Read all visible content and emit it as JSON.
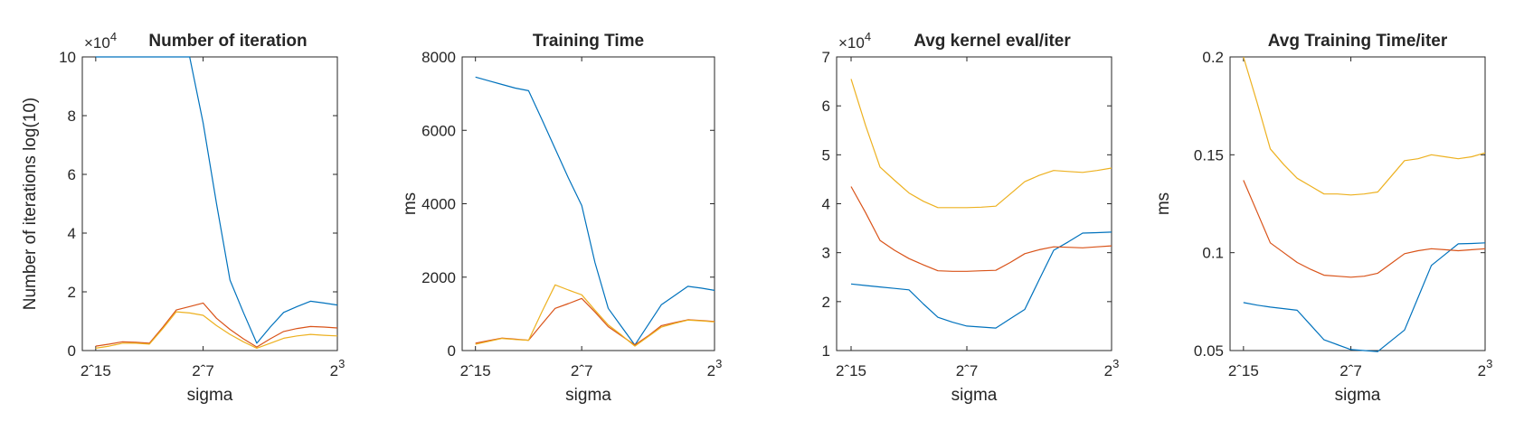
{
  "colors": {
    "series1": "#0072BD",
    "series2": "#D95319",
    "series3": "#EDB120",
    "axis": "#262626"
  },
  "chart_data": [
    {
      "type": "line",
      "title": "Number of iteration",
      "xlabel": "sigma",
      "ylabel": "Number of iterations log(10)",
      "exponent_label": "×10",
      "exponent_power": "4",
      "xlim": [
        -16,
        3
      ],
      "ylim": [
        0,
        10
      ],
      "xticks": [
        {
          "v": -15,
          "label": "2ˆ15"
        },
        {
          "v": -7,
          "label": "2ˆ7"
        },
        {
          "v": 3,
          "label": "2"
        }
      ],
      "xtick_power": "3",
      "yticks": [
        {
          "v": 0,
          "label": "0"
        },
        {
          "v": 2,
          "label": "2"
        },
        {
          "v": 4,
          "label": "4"
        },
        {
          "v": 6,
          "label": "6"
        },
        {
          "v": 8,
          "label": "8"
        },
        {
          "v": 10,
          "label": "10"
        }
      ],
      "x": [
        -15,
        -14,
        -13,
        -12,
        -11,
        -10,
        -9,
        -8,
        -7,
        -6,
        -5,
        -4,
        -3,
        -2,
        -1,
        0,
        1,
        2,
        3
      ],
      "series": [
        {
          "color": "series1",
          "values": [
            10,
            10,
            10,
            10,
            10,
            10,
            10,
            10,
            7.75,
            5.0,
            2.4,
            1.3,
            0.25,
            0.8,
            1.3,
            1.5,
            1.68,
            1.62,
            1.55
          ]
        },
        {
          "color": "series2",
          "values": [
            0.15,
            0.22,
            0.3,
            0.28,
            0.25,
            0.8,
            1.38,
            1.5,
            1.62,
            1.1,
            0.72,
            0.4,
            0.12,
            0.4,
            0.65,
            0.75,
            0.82,
            0.8,
            0.77
          ]
        },
        {
          "color": "series3",
          "values": [
            0.08,
            0.15,
            0.25,
            0.25,
            0.22,
            0.75,
            1.32,
            1.28,
            1.2,
            0.85,
            0.55,
            0.3,
            0.08,
            0.25,
            0.42,
            0.5,
            0.55,
            0.52,
            0.5
          ]
        }
      ]
    },
    {
      "type": "line",
      "title": "Training Time",
      "xlabel": "sigma",
      "ylabel": "ms",
      "exponent_label": "",
      "exponent_power": "",
      "xlim": [
        -16,
        3
      ],
      "ylim": [
        0,
        8000
      ],
      "xticks": [
        {
          "v": -15,
          "label": "2ˆ15"
        },
        {
          "v": -7,
          "label": "2ˆ7"
        },
        {
          "v": 3,
          "label": "2"
        }
      ],
      "xtick_power": "3",
      "yticks": [
        {
          "v": 0,
          "label": "0"
        },
        {
          "v": 2000,
          "label": "2000"
        },
        {
          "v": 4000,
          "label": "4000"
        },
        {
          "v": 6000,
          "label": "6000"
        },
        {
          "v": 8000,
          "label": "8000"
        }
      ],
      "x": [
        -15,
        -14,
        -13,
        -12,
        -11,
        -10,
        -9,
        -8,
        -7,
        -6,
        -5,
        -4,
        -3,
        -2,
        -1,
        0,
        1,
        2,
        3
      ],
      "series": [
        {
          "color": "series1",
          "values": [
            7450,
            7350,
            7250,
            7150,
            7080,
            6300,
            5500,
            4700,
            3950,
            2400,
            1150,
            650,
            150,
            700,
            1250,
            1500,
            1750,
            1700,
            1640
          ]
        },
        {
          "color": "series2",
          "values": [
            200,
            270,
            340,
            310,
            280,
            720,
            1150,
            1280,
            1420,
            1050,
            650,
            400,
            150,
            400,
            680,
            760,
            840,
            820,
            790
          ]
        },
        {
          "color": "series3",
          "values": [
            170,
            250,
            330,
            300,
            280,
            1050,
            1790,
            1650,
            1520,
            1100,
            700,
            420,
            120,
            380,
            640,
            740,
            830,
            810,
            780
          ]
        }
      ]
    },
    {
      "type": "line",
      "title": "Avg kernel eval/iter",
      "xlabel": "sigma",
      "ylabel": "",
      "exponent_label": "×10",
      "exponent_power": "4",
      "xlim": [
        -16,
        3
      ],
      "ylim": [
        1,
        7
      ],
      "xticks": [
        {
          "v": -15,
          "label": "2ˆ15"
        },
        {
          "v": -7,
          "label": "2ˆ7"
        },
        {
          "v": 3,
          "label": "2"
        }
      ],
      "xtick_power": "3",
      "yticks": [
        {
          "v": 1,
          "label": "1"
        },
        {
          "v": 2,
          "label": "2"
        },
        {
          "v": 3,
          "label": "3"
        },
        {
          "v": 4,
          "label": "4"
        },
        {
          "v": 5,
          "label": "5"
        },
        {
          "v": 6,
          "label": "6"
        },
        {
          "v": 7,
          "label": "7"
        }
      ],
      "x": [
        -15,
        -14,
        -13,
        -12,
        -11,
        -10,
        -9,
        -8,
        -7,
        -6,
        -5,
        -4,
        -3,
        -2,
        -1,
        0,
        1,
        2,
        3
      ],
      "series": [
        {
          "color": "series1",
          "values": [
            2.36,
            2.33,
            2.3,
            2.27,
            2.24,
            1.95,
            1.68,
            1.58,
            1.5,
            1.48,
            1.46,
            1.65,
            1.84,
            2.45,
            3.05,
            3.22,
            3.4,
            3.41,
            3.42
          ]
        },
        {
          "color": "series2",
          "values": [
            4.35,
            3.82,
            3.25,
            3.05,
            2.88,
            2.75,
            2.63,
            2.62,
            2.62,
            2.63,
            2.64,
            2.8,
            2.98,
            3.06,
            3.12,
            3.11,
            3.1,
            3.12,
            3.14
          ]
        },
        {
          "color": "series3",
          "values": [
            6.55,
            5.6,
            4.75,
            4.48,
            4.22,
            4.05,
            3.92,
            3.92,
            3.92,
            3.93,
            3.95,
            4.2,
            4.45,
            4.58,
            4.68,
            4.66,
            4.64,
            4.68,
            4.73
          ]
        }
      ]
    },
    {
      "type": "line",
      "title": "Avg Training Time/iter",
      "xlabel": "sigma",
      "ylabel": "ms",
      "exponent_label": "",
      "exponent_power": "",
      "xlim": [
        -16,
        3
      ],
      "ylim": [
        0.05,
        0.2
      ],
      "xticks": [
        {
          "v": -15,
          "label": "2ˆ15"
        },
        {
          "v": -7,
          "label": "2ˆ7"
        },
        {
          "v": 3,
          "label": "2"
        }
      ],
      "xtick_power": "3",
      "yticks": [
        {
          "v": 0.05,
          "label": "0.05"
        },
        {
          "v": 0.1,
          "label": "0.1"
        },
        {
          "v": 0.15,
          "label": "0.15"
        },
        {
          "v": 0.2,
          "label": "0.2"
        }
      ],
      "x": [
        -15,
        -14,
        -13,
        -12,
        -11,
        -10,
        -9,
        -8,
        -7,
        -6,
        -5,
        -4,
        -3,
        -2,
        -1,
        0,
        1,
        2,
        3
      ],
      "series": [
        {
          "color": "series1",
          "values": [
            0.0745,
            0.0732,
            0.0722,
            0.0714,
            0.0706,
            0.063,
            0.0555,
            0.053,
            0.0505,
            0.05,
            0.0495,
            0.055,
            0.0605,
            0.077,
            0.0935,
            0.099,
            0.1045,
            0.1047,
            0.105
          ]
        },
        {
          "color": "series2",
          "values": [
            0.137,
            0.121,
            0.105,
            0.1,
            0.095,
            0.0915,
            0.0885,
            0.088,
            0.0875,
            0.088,
            0.0895,
            0.0945,
            0.0995,
            0.101,
            0.102,
            0.1015,
            0.101,
            0.1015,
            0.102
          ]
        },
        {
          "color": "series3",
          "values": [
            0.2,
            0.177,
            0.153,
            0.145,
            0.138,
            0.134,
            0.13,
            0.13,
            0.1295,
            0.13,
            0.131,
            0.139,
            0.147,
            0.148,
            0.15,
            0.149,
            0.148,
            0.149,
            0.151
          ]
        }
      ]
    }
  ]
}
